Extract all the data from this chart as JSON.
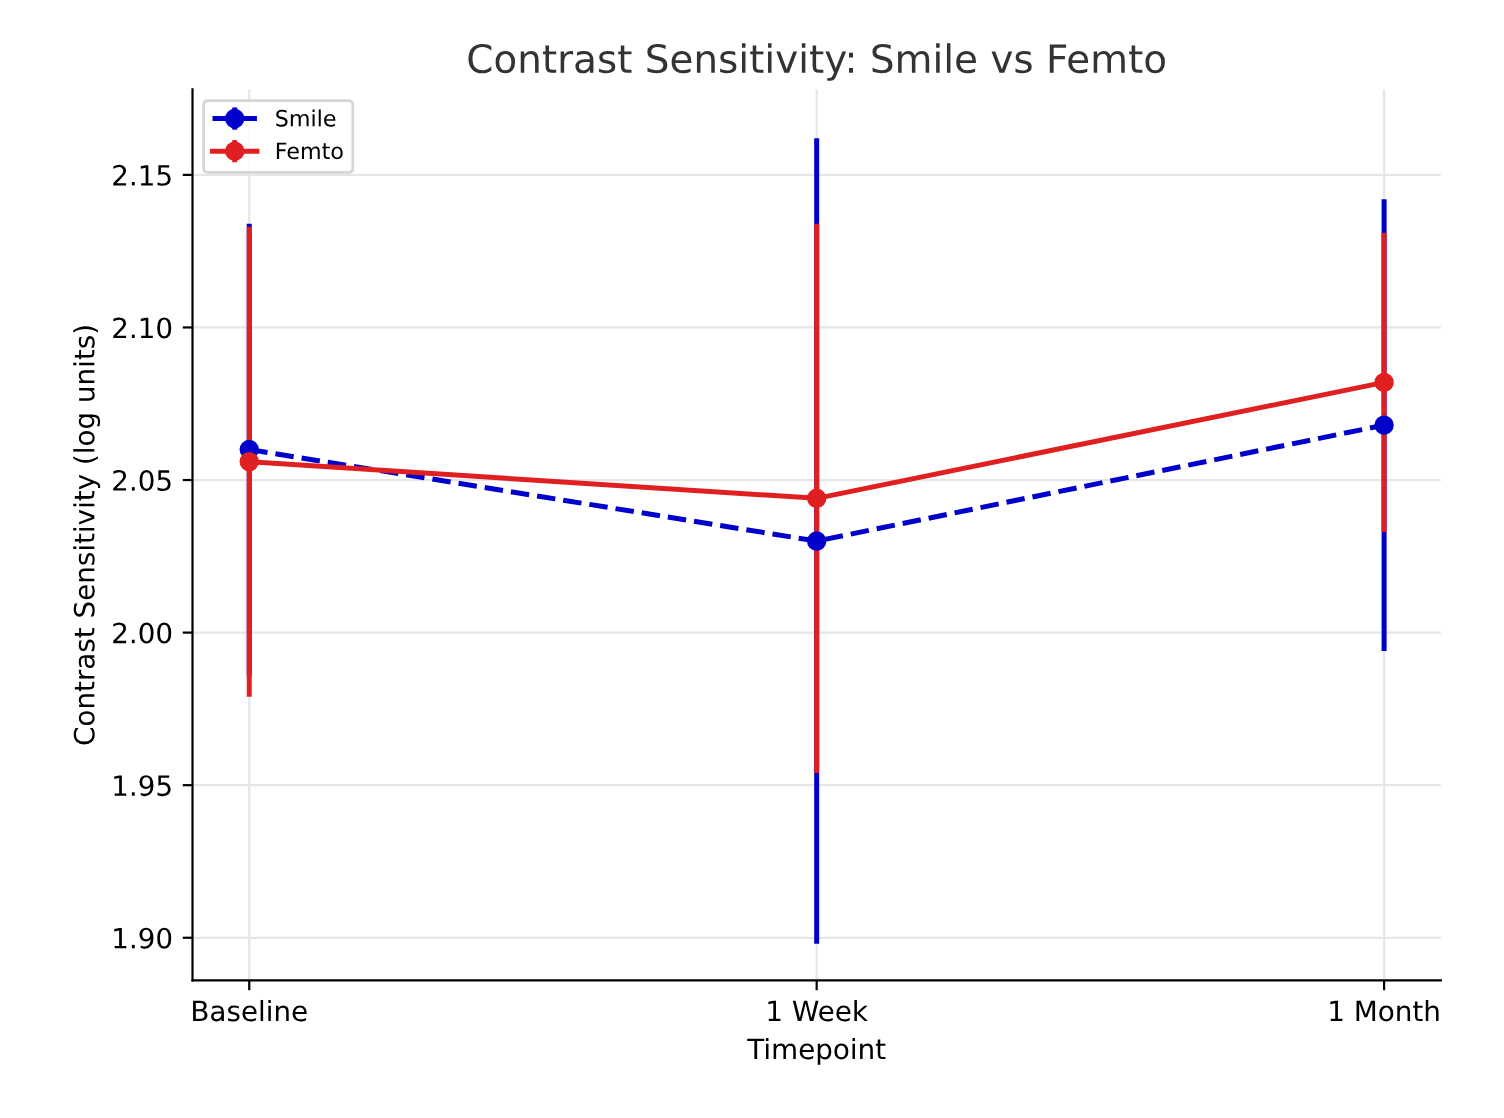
{
  "chart_data": {
    "type": "line",
    "title": "Contrast Sensitivity: Smile vs Femto",
    "xlabel": "Timepoint",
    "ylabel": "Contrast Sensitivity (log units)",
    "categories": [
      "Baseline",
      "1 Week",
      "1 Month"
    ],
    "series": [
      {
        "name": "Smile",
        "color": "#0000cc",
        "values": [
          2.06,
          2.03,
          2.068
        ],
        "errors": [
          0.074,
          0.132,
          0.074
        ],
        "line_style": "dashed",
        "marker": "circle"
      },
      {
        "name": "Femto",
        "color": "#e02020",
        "values": [
          2.056,
          2.044,
          2.082
        ],
        "errors": [
          0.077,
          0.09,
          0.049
        ],
        "line_style": "solid",
        "marker": "circle"
      }
    ],
    "ylim": [
      1.886,
      2.178
    ],
    "yticks": [
      {
        "value": 1.9,
        "label": "1.90"
      },
      1.95,
      {
        "value": 2,
        "label": "2.00"
      },
      2.05,
      {
        "value": 2.1,
        "label": "2.10"
      },
      2.15
    ],
    "grid": true,
    "legend": "top left"
  }
}
